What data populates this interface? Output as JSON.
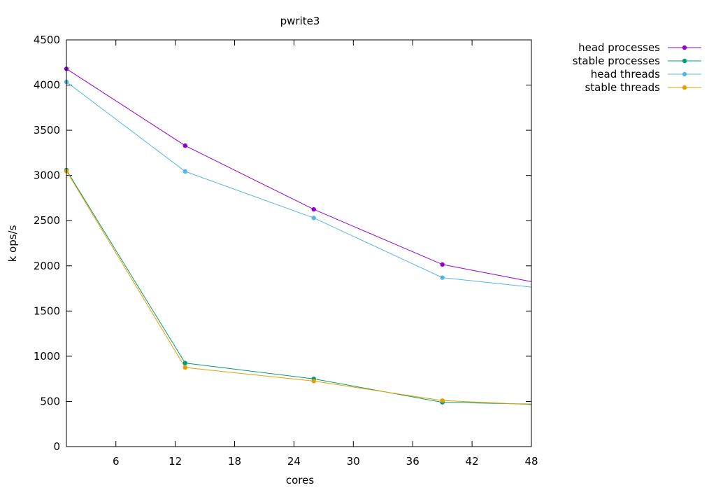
{
  "chart_data": {
    "type": "line",
    "title": "pwrite3",
    "xlabel": "cores",
    "ylabel": "k ops/s",
    "xlim": [
      1,
      48
    ],
    "ylim": [
      0,
      4500
    ],
    "xticks": [
      6,
      12,
      18,
      24,
      30,
      36,
      42,
      48
    ],
    "yticks": [
      0,
      500,
      1000,
      1500,
      2000,
      2500,
      3000,
      3500,
      4000,
      4500
    ],
    "grid": false,
    "legend_position": "outside-top-right",
    "series": [
      {
        "name": "head processes",
        "color": "#9400d3",
        "x": [
          1,
          13,
          26,
          39,
          48
        ],
        "y": [
          4180,
          3330,
          2625,
          2015,
          1825
        ],
        "markers": [
          true,
          true,
          true,
          true,
          false
        ]
      },
      {
        "name": "stable processes",
        "color": "#009e73",
        "x": [
          1,
          13,
          26,
          39,
          48
        ],
        "y": [
          3060,
          925,
          750,
          490,
          470
        ],
        "markers": [
          true,
          true,
          true,
          true,
          false
        ]
      },
      {
        "name": "head threads",
        "color": "#56b4e9",
        "x": [
          1,
          13,
          26,
          39,
          48
        ],
        "y": [
          4035,
          3045,
          2530,
          1870,
          1765
        ],
        "markers": [
          true,
          true,
          true,
          true,
          false
        ]
      },
      {
        "name": "stable threads",
        "color": "#e69f00",
        "x": [
          1,
          13,
          26,
          39,
          48
        ],
        "y": [
          3050,
          875,
          725,
          510,
          465
        ],
        "markers": [
          true,
          true,
          true,
          true,
          false
        ]
      }
    ]
  }
}
